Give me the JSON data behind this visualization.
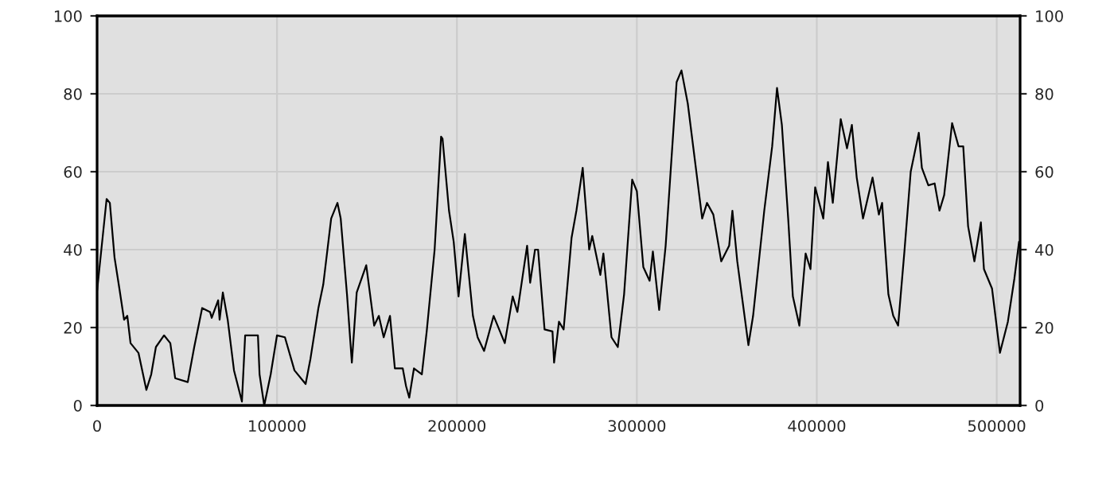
{
  "chart_data": {
    "type": "line",
    "x": [
      0,
      3500,
      5300,
      7100,
      9700,
      12400,
      15000,
      16800,
      18600,
      23000,
      27400,
      30100,
      32700,
      37200,
      40700,
      43400,
      50400,
      54000,
      58400,
      62800,
      63700,
      67300,
      68100,
      69900,
      72600,
      76100,
      80500,
      82300,
      89400,
      90300,
      92900,
      96500,
      100000,
      104400,
      109700,
      115900,
      118600,
      123000,
      125700,
      130100,
      133600,
      135400,
      138900,
      141600,
      144300,
      149600,
      154000,
      156600,
      159300,
      162800,
      165500,
      169900,
      171700,
      173500,
      176100,
      180500,
      183200,
      187600,
      191200,
      192000,
      195600,
      198200,
      200900,
      204400,
      208900,
      211500,
      215100,
      220400,
      226600,
      231000,
      233600,
      239000,
      240700,
      243400,
      245100,
      248700,
      253100,
      254000,
      256700,
      259300,
      263700,
      266400,
      269900,
      273500,
      275200,
      279700,
      281400,
      285900,
      289400,
      292900,
      297400,
      300000,
      303600,
      307100,
      308900,
      312400,
      316000,
      322100,
      324800,
      328300,
      333600,
      336300,
      339000,
      342500,
      346900,
      351300,
      353100,
      355800,
      362000,
      364600,
      370800,
      375200,
      377900,
      380600,
      384100,
      386700,
      390300,
      393800,
      396500,
      399100,
      403600,
      406200,
      408900,
      413300,
      416800,
      419500,
      422200,
      425700,
      431000,
      434500,
      436300,
      439800,
      442500,
      445200,
      448700,
      452200,
      456700,
      458400,
      462000,
      465500,
      468200,
      470800,
      475200,
      478800,
      481400,
      484100,
      487600,
      491200,
      492900,
      497400,
      501800,
      506200,
      509800,
      512400
    ],
    "series": [
      {
        "color": "#000000",
        "values": [
          29.4,
          45,
          53,
          52,
          38,
          30,
          22,
          23,
          16,
          13.5,
          4,
          8,
          15,
          18,
          16,
          7,
          6,
          15,
          25,
          24,
          22.5,
          27,
          22,
          29,
          22,
          9,
          1,
          18,
          18,
          8,
          0,
          8,
          18,
          17.5,
          9,
          5.5,
          12,
          25,
          31,
          48,
          52,
          48,
          28.5,
          11,
          29,
          36,
          20.5,
          23,
          17.5,
          23,
          9.5,
          9.5,
          5,
          2,
          9.5,
          8,
          19,
          40,
          69,
          68.5,
          50,
          42,
          28,
          44,
          23,
          17.5,
          14,
          23,
          16,
          28,
          24,
          41,
          31.5,
          40,
          40,
          19.5,
          19,
          11,
          21.5,
          19.5,
          43,
          50,
          61,
          40,
          43.5,
          33.5,
          39,
          17.5,
          15,
          28.5,
          58,
          55,
          35.5,
          32,
          39.5,
          24.5,
          41,
          83,
          86,
          77.5,
          58,
          48,
          52,
          49,
          37,
          41,
          50,
          37,
          15.5,
          23,
          50,
          66.5,
          81.5,
          72,
          48,
          28,
          20.5,
          39,
          35,
          56,
          48,
          62.5,
          52,
          73.5,
          66,
          72,
          58.5,
          48,
          58.5,
          49,
          52,
          28.5,
          23,
          20.5,
          39.5,
          60,
          70,
          61,
          56.5,
          57,
          50,
          54,
          72.5,
          66.5,
          66.5,
          46,
          37,
          47,
          35,
          30,
          13.5,
          21.5,
          32.5,
          42
        ]
      }
    ],
    "xlim": [
      0,
      513000
    ],
    "xticks": [
      0,
      100000,
      200000,
      300000,
      400000,
      500000
    ],
    "ylim": [
      0,
      100
    ],
    "yticks": [
      0,
      20,
      40,
      60,
      80,
      100
    ],
    "y2lim": [
      0,
      100
    ],
    "y2ticks": [
      0,
      20,
      40,
      60,
      80,
      100
    ],
    "grid": true,
    "marker": "none",
    "line_style": "solid"
  }
}
